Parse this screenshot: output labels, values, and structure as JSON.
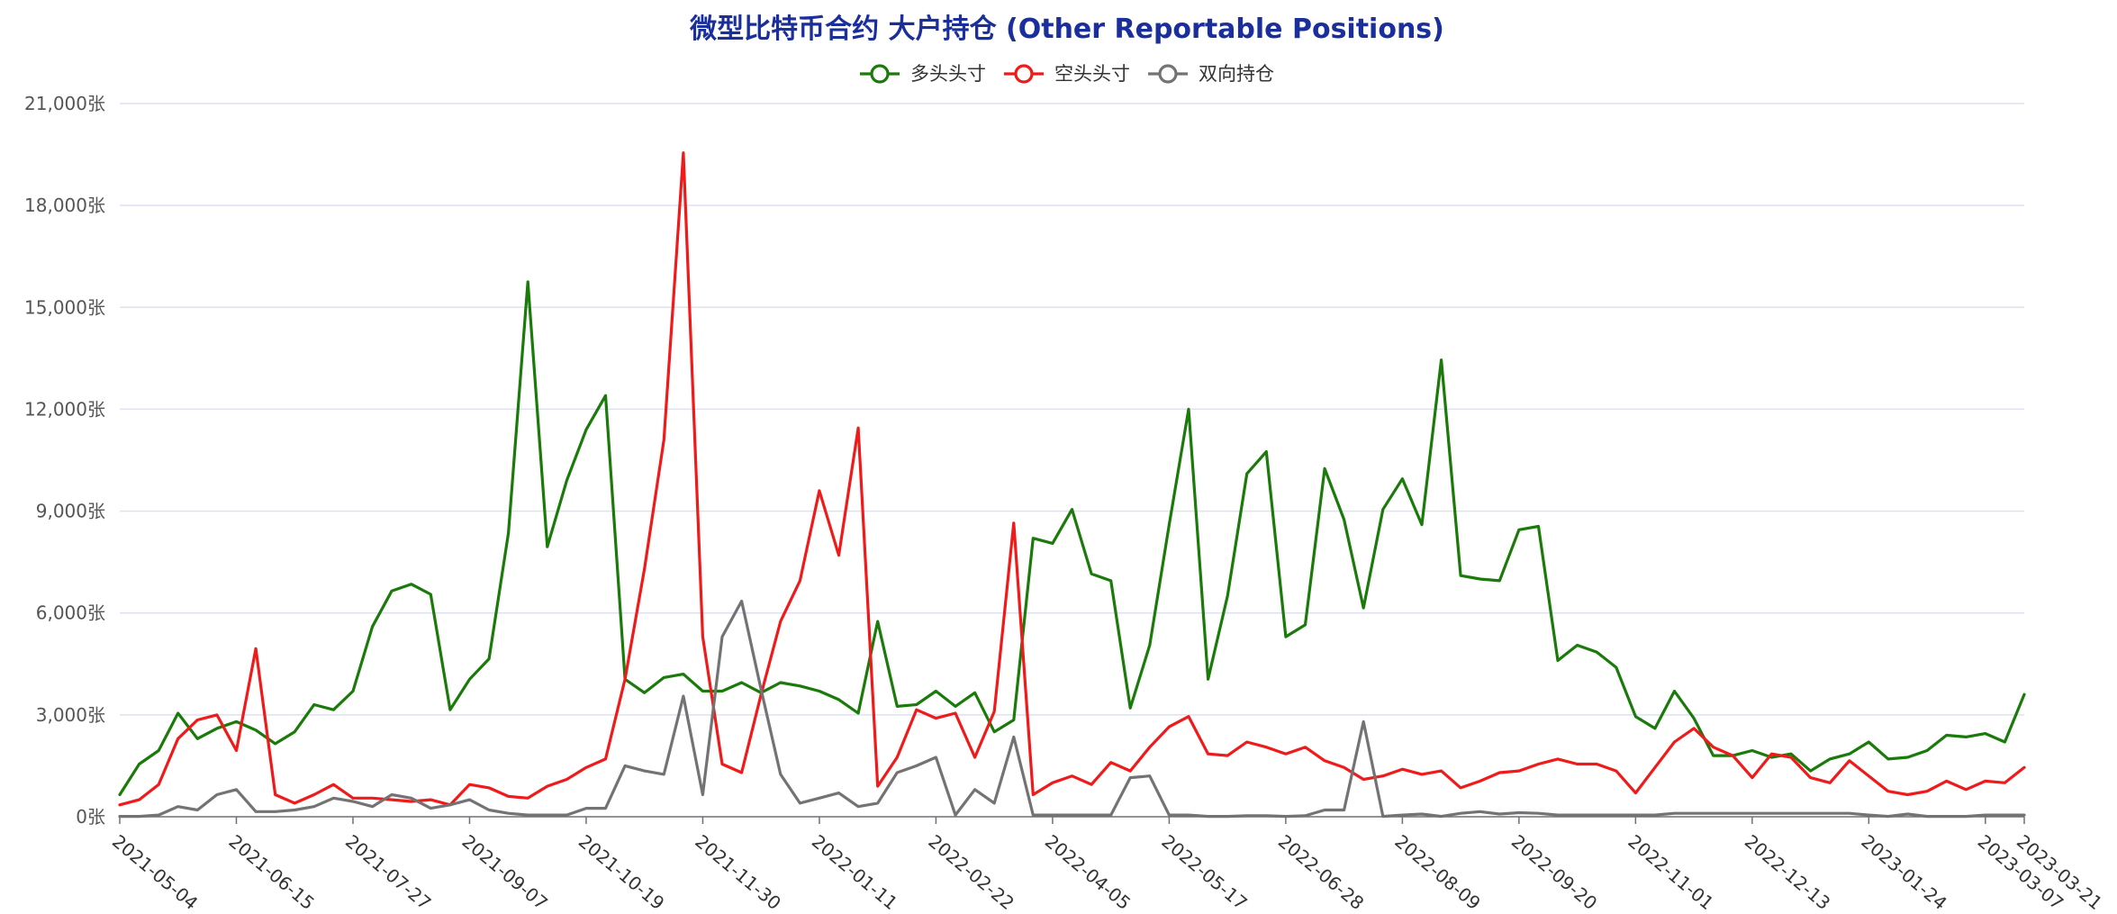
{
  "chart_data": {
    "type": "line",
    "title": "微型比特币合约 大户持仓 (Other Reportable Positions)",
    "xlabel": "",
    "ylabel": "",
    "y_unit": "张",
    "ylim": [
      0,
      21000
    ],
    "y_ticks": [
      0,
      3000,
      6000,
      9000,
      12000,
      15000,
      18000,
      21000
    ],
    "y_tick_labels": [
      "0张",
      "3,000张",
      "6,000张",
      "9,000张",
      "12,000张",
      "15,000张",
      "18,000张",
      "21,000张"
    ],
    "x_tick_labels": [
      "2021-05-04",
      "2021-06-15",
      "2021-07-27",
      "2021-09-07",
      "2021-10-19",
      "2021-11-30",
      "2022-01-11",
      "2022-02-22",
      "2022-04-05",
      "2022-05-17",
      "2022-06-28",
      "2022-08-09",
      "2022-09-20",
      "2022-11-01",
      "2022-12-13",
      "2023-01-24",
      "2023-03-07",
      "2023-03-21"
    ],
    "x_start": "2021-05-04",
    "x_interval_days": 7,
    "legend_position": "top-center",
    "grid": true,
    "series": [
      {
        "name": "多头头寸",
        "color": "#1a7a0a",
        "values": [
          650,
          1550,
          1950,
          3050,
          2300,
          2600,
          2800,
          2550,
          2150,
          2500,
          3300,
          3150,
          3700,
          5600,
          6650,
          6850,
          6550,
          3150,
          4050,
          4650,
          8350,
          15750,
          7950,
          9900,
          11400,
          12400,
          4050,
          3650,
          4100,
          4200,
          3700,
          3700,
          3950,
          3650,
          3950,
          3850,
          3700,
          3450,
          3050,
          5750,
          3250,
          3300,
          3700,
          3250,
          3650,
          2500,
          2850,
          8200,
          8050,
          9050,
          7150,
          6950,
          3200,
          5050,
          8600,
          12000,
          4050,
          6500,
          10100,
          10750,
          5300,
          5650,
          10250,
          8750,
          6150,
          9050,
          9950,
          8600,
          13450,
          7100,
          7000,
          6950,
          8450,
          8550,
          4600,
          5050,
          4850,
          4400,
          2950,
          2600,
          3700,
          2900,
          1800,
          1800,
          1950,
          1750,
          1850,
          1350,
          1700,
          1850,
          2200,
          1700,
          1750,
          1950,
          2400,
          2350,
          2450,
          2200,
          3600
        ]
      },
      {
        "name": "空头头寸",
        "color": "#f01a1a",
        "values": [
          350,
          500,
          950,
          2300,
          2850,
          3000,
          1950,
          4950,
          650,
          400,
          650,
          950,
          550,
          550,
          500,
          450,
          500,
          350,
          950,
          850,
          600,
          550,
          900,
          1100,
          1450,
          1700,
          4050,
          7300,
          11100,
          19550,
          5300,
          1550,
          1300,
          3600,
          5750,
          6950,
          9600,
          7700,
          11450,
          900,
          1750,
          3150,
          2900,
          3050,
          1750,
          3100,
          8650,
          650,
          1000,
          1200,
          950,
          1600,
          1350,
          2050,
          2650,
          2950,
          1850,
          1800,
          2200,
          2050,
          1850,
          2050,
          1650,
          1450,
          1100,
          1200,
          1400,
          1250,
          1350,
          850,
          1050,
          1300,
          1350,
          1550,
          1700,
          1550,
          1550,
          1350,
          700,
          1450,
          2200,
          2600,
          2050,
          1800,
          1150,
          1850,
          1750,
          1150,
          1000,
          1650,
          1200,
          750,
          650,
          750,
          1050,
          800,
          1050,
          1000,
          1450
        ]
      },
      {
        "name": "双向持仓",
        "color": "#737373",
        "values": [
          10,
          10,
          50,
          300,
          200,
          650,
          800,
          150,
          150,
          200,
          300,
          550,
          450,
          300,
          650,
          550,
          250,
          350,
          500,
          200,
          100,
          50,
          50,
          50,
          250,
          250,
          1500,
          1350,
          1250,
          3550,
          650,
          5300,
          6350,
          3750,
          1250,
          400,
          550,
          700,
          300,
          400,
          1300,
          1500,
          1750,
          50,
          800,
          400,
          2350,
          50,
          50,
          50,
          50,
          50,
          1150,
          1200,
          50,
          50,
          10,
          10,
          30,
          30,
          10,
          30,
          200,
          200,
          2800,
          10,
          50,
          80,
          10,
          100,
          150,
          80,
          120,
          100,
          50,
          50,
          50,
          50,
          50,
          50,
          100,
          100,
          100,
          100,
          100,
          100,
          100,
          100,
          100,
          100,
          50,
          10,
          80,
          10,
          10,
          10,
          50,
          50,
          50
        ]
      }
    ]
  }
}
